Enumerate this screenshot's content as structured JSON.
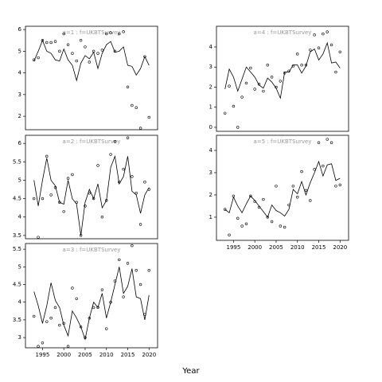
{
  "x_label": "Year",
  "chart_data": [
    {
      "type": "line",
      "title": "a=1 : f=UKBTSurvey",
      "x": [
        1993,
        1994,
        1995,
        1996,
        1997,
        1998,
        1999,
        2000,
        2001,
        2002,
        2003,
        2004,
        2005,
        2006,
        2007,
        2008,
        2009,
        2010,
        2011,
        2012,
        2013,
        2014,
        2015,
        2016,
        2017,
        2018,
        2019,
        2020
      ],
      "xlim": [
        1991,
        2022
      ],
      "ylim": [
        1.38,
        6.15
      ],
      "yticks": [
        2,
        3,
        4,
        5,
        6
      ],
      "color": "#000000",
      "series": [
        {
          "style": "points",
          "values": [
            4.6,
            4.7,
            5.5,
            5.4,
            5.4,
            5.45,
            5.0,
            5.8,
            5.3,
            4.9,
            4.55,
            5.5,
            5.2,
            4.5,
            5.0,
            4.9,
            5.05,
            5.8,
            5.85,
            5.0,
            5.8,
            5.9,
            3.35,
            2.5,
            2.4,
            1.45,
            4.75,
            1.95
          ]
        },
        {
          "style": "line",
          "values": [
            4.55,
            5.0,
            5.5,
            5.0,
            4.9,
            4.6,
            4.55,
            5.1,
            4.6,
            4.35,
            3.65,
            4.45,
            4.8,
            4.65,
            4.95,
            4.2,
            4.9,
            5.3,
            5.45,
            4.95,
            5.0,
            5.2,
            4.35,
            4.3,
            3.9,
            4.2,
            4.75,
            4.35
          ]
        }
      ]
    },
    {
      "type": "line",
      "title": "a=2 : f=UKBTSurvey",
      "x": [
        1993,
        1994,
        1995,
        1996,
        1997,
        1998,
        1999,
        2000,
        2001,
        2002,
        2003,
        2004,
        2005,
        2006,
        2007,
        2008,
        2009,
        2010,
        2011,
        2012,
        2013,
        2014,
        2015,
        2016,
        2017,
        2018,
        2019,
        2020
      ],
      "xlim": [
        1991,
        2022
      ],
      "ylim": [
        3.41,
        6.22
      ],
      "yticks": [
        3.5,
        4.0,
        4.5,
        5.0,
        5.5,
        6.0
      ],
      "color": "#000000",
      "series": [
        {
          "style": "points",
          "values": [
            4.5,
            3.45,
            4.5,
            5.65,
            4.6,
            4.8,
            4.4,
            4.15,
            5.05,
            5.15,
            4.4,
            3.5,
            4.3,
            4.65,
            4.5,
            5.4,
            4.0,
            4.45,
            5.7,
            6.05,
            4.95,
            5.3,
            6.15,
            5.1,
            4.65,
            3.8,
            4.95,
            4.75
          ]
        },
        {
          "style": "line",
          "values": [
            5.0,
            4.3,
            5.0,
            5.6,
            5.0,
            4.85,
            4.4,
            4.35,
            5.0,
            4.5,
            4.35,
            3.5,
            4.4,
            4.75,
            4.5,
            4.9,
            4.25,
            4.45,
            5.35,
            5.65,
            4.9,
            5.1,
            5.65,
            4.7,
            4.6,
            4.1,
            4.6,
            4.8
          ]
        }
      ]
    },
    {
      "type": "line",
      "title": "a=3 : f=UKBTSurvey",
      "x": [
        1993,
        1994,
        1995,
        1996,
        1997,
        1998,
        1999,
        2000,
        2001,
        2002,
        2003,
        2004,
        2005,
        2006,
        2007,
        2008,
        2009,
        2010,
        2011,
        2012,
        2013,
        2014,
        2015,
        2016,
        2017,
        2018,
        2019,
        2020
      ],
      "xlim": [
        1991,
        2022
      ],
      "xticks": [
        1995,
        2000,
        2005,
        2010,
        2015,
        2020
      ],
      "ylim": [
        2.71,
        5.66
      ],
      "yticks": [
        3.0,
        3.5,
        4.0,
        4.5,
        5.0,
        5.5
      ],
      "color": "#000000",
      "series": [
        {
          "style": "points",
          "values": [
            3.6,
            2.75,
            2.85,
            3.45,
            3.55,
            3.85,
            3.35,
            3.4,
            2.75,
            4.4,
            4.1,
            3.3,
            3.0,
            3.55,
            3.85,
            3.85,
            4.35,
            3.25,
            4.0,
            4.6,
            5.2,
            4.15,
            5.1,
            5.6,
            4.9,
            4.5,
            3.65,
            4.9
          ]
        },
        {
          "style": "line",
          "values": [
            4.3,
            3.9,
            3.4,
            3.9,
            4.55,
            4.05,
            3.85,
            3.35,
            3.05,
            3.75,
            3.55,
            3.3,
            2.95,
            3.55,
            4.0,
            3.85,
            4.25,
            3.55,
            4.0,
            4.5,
            5.0,
            4.25,
            4.45,
            4.95,
            4.15,
            4.1,
            3.5,
            4.2
          ]
        }
      ]
    },
    {
      "type": "line",
      "title": "a=4 : f=UKBTSurvey",
      "x": [
        1993,
        1994,
        1995,
        1996,
        1997,
        1998,
        1999,
        2000,
        2001,
        2002,
        2003,
        2004,
        2005,
        2006,
        2007,
        2008,
        2009,
        2010,
        2011,
        2012,
        2013,
        2014,
        2015,
        2016,
        2017,
        2018,
        2019,
        2020
      ],
      "xlim": [
        1991,
        2022
      ],
      "ylim": [
        -0.2,
        5.03
      ],
      "yticks": [
        0,
        1,
        2,
        3,
        4
      ],
      "color": "#000000",
      "series": [
        {
          "style": "points",
          "values": [
            0.7,
            2.05,
            1.05,
            0.0,
            1.5,
            2.2,
            2.95,
            1.9,
            2.15,
            1.8,
            3.1,
            2.5,
            2.0,
            2.3,
            2.7,
            2.8,
            3.05,
            3.65,
            3.1,
            3.1,
            3.85,
            4.6,
            3.95,
            4.65,
            4.75,
            4.1,
            2.75,
            3.75
          ]
        },
        {
          "style": "line",
          "values": [
            1.9,
            2.9,
            2.5,
            1.8,
            2.4,
            3.0,
            2.75,
            2.5,
            2.1,
            1.95,
            2.45,
            2.25,
            1.95,
            1.45,
            2.75,
            2.75,
            3.1,
            3.1,
            2.7,
            3.05,
            3.75,
            3.9,
            3.35,
            3.65,
            4.2,
            3.2,
            3.25,
            2.95
          ]
        }
      ]
    },
    {
      "type": "line",
      "title": "a=5 : f=UKBTSurvey",
      "x": [
        1993,
        1994,
        1995,
        1996,
        1997,
        1998,
        1999,
        2000,
        2001,
        2002,
        2003,
        2004,
        2005,
        2006,
        2007,
        2008,
        2009,
        2010,
        2011,
        2012,
        2013,
        2014,
        2015,
        2016,
        2017,
        2018,
        2019,
        2020
      ],
      "xlim": [
        1991,
        2022
      ],
      "xticks": [
        1995,
        2000,
        2005,
        2010,
        2015,
        2020
      ],
      "ylim": [
        -0.04,
        4.68
      ],
      "yticks": [
        1,
        2,
        3,
        4
      ],
      "color": "#000000",
      "series": [
        {
          "style": "points",
          "values": [
            1.35,
            0.2,
            1.95,
            0.95,
            0.6,
            0.7,
            1.95,
            1.7,
            1.45,
            1.8,
            1.0,
            0.8,
            2.4,
            0.6,
            0.55,
            1.55,
            2.4,
            1.9,
            3.05,
            2.2,
            1.75,
            3.15,
            4.35,
            3.3,
            4.5,
            4.35,
            2.4,
            2.45
          ]
        },
        {
          "style": "line",
          "values": [
            1.35,
            1.2,
            1.9,
            1.5,
            1.2,
            1.6,
            1.95,
            1.75,
            1.5,
            1.25,
            1.0,
            1.55,
            1.3,
            1.2,
            1.05,
            1.35,
            2.25,
            2.05,
            2.6,
            2.0,
            2.55,
            3.0,
            3.5,
            2.85,
            3.35,
            3.4,
            2.65,
            2.75
          ]
        }
      ]
    }
  ]
}
